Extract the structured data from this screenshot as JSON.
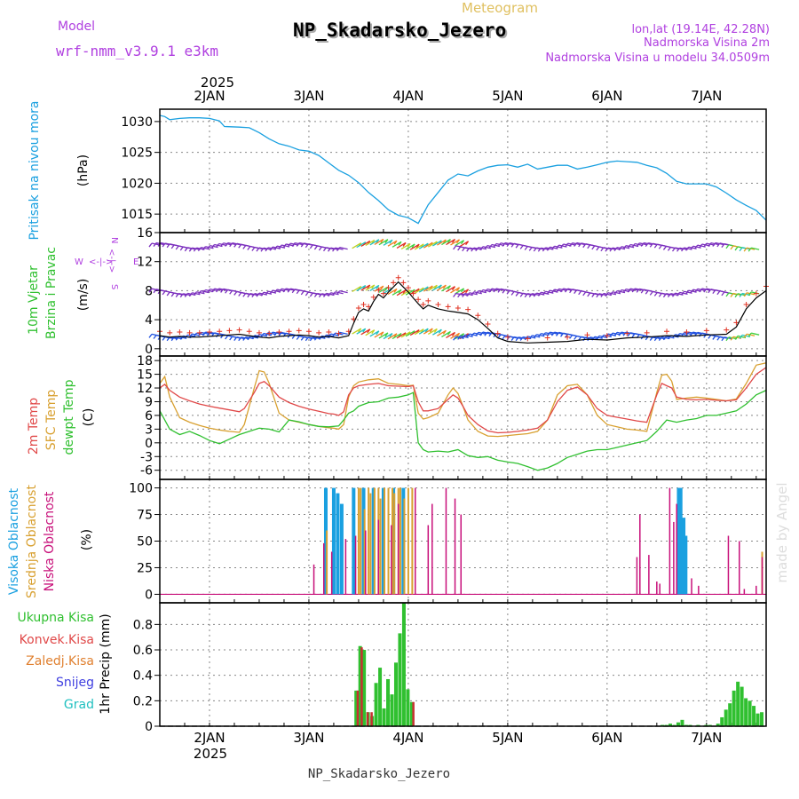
{
  "header": {
    "model_label": "Model",
    "model_name": "wrf-nmm_v3.9.1 e3km",
    "meteogram_label": "Meteogram",
    "station_title": "NP_Skadarsko_Jezero",
    "coords": "lon,lat (19.14E, 42.28N)",
    "elevation": "Nadmorska Visina 2m",
    "model_elevation": "Nadmorska Visina u modelu 34.0509m",
    "year_top": "2025",
    "year_bottom": "2025",
    "footer_station": "NP_Skadarsko_Jezero",
    "watermark": "made by Angel"
  },
  "colors": {
    "pressure": "#1aa0e0",
    "temp2m": "#e04848",
    "sfc_temp": "#d8a030",
    "dewpt": "#30c030",
    "high_cloud": "#1aa0e0",
    "mid_cloud": "#d8a030",
    "low_cloud": "#c8107a",
    "total_precip": "#30c030",
    "conv_precip": "#c83030",
    "snow_label": "#4040e0",
    "hail_label": "#20c0c0",
    "wind_purple": "#7b2fbe",
    "wind_blue": "#2050e0",
    "wind_red": "#e03020",
    "wind_black": "#000000",
    "grid": "#888888",
    "panel_label_blue": "#1aa0e0",
    "panel_label_green": "#30c030",
    "panel_label_purple": "#b040e0",
    "konvek_label": "#e04848",
    "zaledj_label": "#e08030"
  },
  "chart_data": [
    {
      "type": "line",
      "id": "pressure",
      "title": "Pritisak na nivou mora",
      "ylabel": "(hPa)",
      "ylim": [
        1012,
        1032
      ],
      "yticks": [
        1015,
        1020,
        1025,
        1030
      ],
      "x_days": [
        "2JAN",
        "3JAN",
        "4JAN",
        "5JAN",
        "6JAN",
        "7JAN"
      ],
      "xlim": [
        1.5,
        7.6
      ],
      "series": [
        {
          "name": "Pritisak",
          "x": [
            1.5,
            1.55,
            1.6,
            1.7,
            1.8,
            1.9,
            2.0,
            2.1,
            2.15,
            2.3,
            2.4,
            2.5,
            2.6,
            2.7,
            2.8,
            2.9,
            3.0,
            3.1,
            3.2,
            3.3,
            3.4,
            3.5,
            3.6,
            3.7,
            3.8,
            3.9,
            4.0,
            4.1,
            4.2,
            4.3,
            4.4,
            4.5,
            4.6,
            4.7,
            4.8,
            4.9,
            5.0,
            5.1,
            5.2,
            5.3,
            5.4,
            5.5,
            5.6,
            5.7,
            5.8,
            5.9,
            6.0,
            6.1,
            6.2,
            6.3,
            6.4,
            6.5,
            6.6,
            6.7,
            6.8,
            6.9,
            7.0,
            7.1,
            7.2,
            7.3,
            7.4,
            7.5,
            7.6
          ],
          "values": [
            1031.0,
            1030.8,
            1030.3,
            1030.5,
            1030.6,
            1030.6,
            1030.5,
            1030.1,
            1029.2,
            1029.1,
            1029.0,
            1028.2,
            1027.2,
            1026.4,
            1026.0,
            1025.4,
            1025.2,
            1024.5,
            1023.3,
            1022.1,
            1021.3,
            1020.1,
            1018.5,
            1017.2,
            1015.7,
            1014.8,
            1014.4,
            1013.5,
            1016.5,
            1018.5,
            1020.5,
            1021.5,
            1021.2,
            1022.0,
            1022.6,
            1022.9,
            1023.0,
            1022.6,
            1023.1,
            1022.3,
            1022.6,
            1022.9,
            1022.9,
            1022.3,
            1022.6,
            1023.0,
            1023.4,
            1023.6,
            1023.5,
            1023.4,
            1022.9,
            1022.5,
            1021.6,
            1020.3,
            1019.9,
            1019.9,
            1019.9,
            1019.4,
            1018.4,
            1017.3,
            1016.4,
            1015.6,
            1014.0
          ]
        }
      ]
    },
    {
      "type": "line",
      "id": "wind",
      "title": "10m Vjetar Brzina i Pravac",
      "ylabel": "(m/s)",
      "ylim": [
        -1,
        16
      ],
      "yticks": [
        0,
        4,
        8,
        12,
        16
      ],
      "compass": {
        "n": "N",
        "s": "S",
        "e": "E",
        "w": "W"
      },
      "series": [
        {
          "name": "Brzina",
          "x": [
            1.5,
            1.6,
            1.7,
            1.8,
            1.9,
            2.0,
            2.1,
            2.2,
            2.3,
            2.4,
            2.5,
            2.6,
            2.7,
            2.8,
            2.9,
            3.0,
            3.1,
            3.2,
            3.3,
            3.4,
            3.45,
            3.5,
            3.55,
            3.6,
            3.65,
            3.7,
            3.75,
            3.8,
            3.85,
            3.9,
            3.95,
            4.0,
            4.05,
            4.1,
            4.15,
            4.2,
            4.3,
            4.4,
            4.5,
            4.6,
            4.7,
            4.8,
            4.9,
            5.0,
            5.2,
            5.4,
            5.6,
            5.8,
            6.0,
            6.2,
            6.4,
            6.6,
            6.8,
            7.0,
            7.2,
            7.3,
            7.4,
            7.5,
            7.6
          ],
          "values": [
            1.8,
            1.6,
            1.7,
            1.6,
            1.6,
            1.7,
            1.8,
            1.9,
            2.0,
            1.8,
            1.6,
            1.5,
            1.7,
            1.8,
            1.9,
            1.8,
            1.6,
            1.7,
            1.5,
            1.8,
            3.5,
            5.0,
            5.5,
            5.2,
            6.5,
            7.5,
            7.0,
            7.8,
            8.5,
            9.2,
            8.5,
            7.8,
            7.0,
            6.2,
            5.5,
            6.0,
            5.5,
            5.2,
            5.0,
            4.8,
            4.0,
            2.8,
            1.5,
            1.0,
            0.8,
            0.9,
            1.0,
            1.3,
            1.2,
            1.5,
            1.6,
            1.8,
            1.7,
            1.9,
            2.0,
            3.0,
            5.5,
            7.0,
            8.0
          ]
        }
      ]
    },
    {
      "type": "line",
      "id": "temperature",
      "title": "2m Temp / SFC Temp / dewpt Temp",
      "ylabel": "(C)",
      "ylim": [
        -8,
        19
      ],
      "yticks": [
        -6,
        -3,
        0,
        3,
        6,
        9,
        12,
        15,
        18
      ],
      "series": [
        {
          "name": "2m Temp",
          "x": [
            1.5,
            1.55,
            1.6,
            1.7,
            1.8,
            1.9,
            2.0,
            2.1,
            2.2,
            2.3,
            2.35,
            2.45,
            2.5,
            2.55,
            2.6,
            2.7,
            2.8,
            2.9,
            3.0,
            3.1,
            3.2,
            3.25,
            3.3,
            3.35,
            3.4,
            3.45,
            3.5,
            3.6,
            3.7,
            3.8,
            3.9,
            4.0,
            4.05,
            4.1,
            4.15,
            4.2,
            4.3,
            4.4,
            4.45,
            4.5,
            4.55,
            4.6,
            4.7,
            4.8,
            4.9,
            5.0,
            5.1,
            5.2,
            5.3,
            5.4,
            5.5,
            5.6,
            5.7,
            5.8,
            5.9,
            6.0,
            6.1,
            6.2,
            6.3,
            6.4,
            6.5,
            6.55,
            6.6,
            6.65,
            6.7,
            6.8,
            6.9,
            7.0,
            7.1,
            7.2,
            7.3,
            7.4,
            7.5,
            7.6
          ],
          "values": [
            12.0,
            12.8,
            11.5,
            10.0,
            9.2,
            8.5,
            8.0,
            7.6,
            7.2,
            6.8,
            7.5,
            11.0,
            13.0,
            13.4,
            12.5,
            10.0,
            8.8,
            8.0,
            7.4,
            6.9,
            6.4,
            6.3,
            6.0,
            6.8,
            10.5,
            12.0,
            12.5,
            12.8,
            13.0,
            12.5,
            12.4,
            12.3,
            12.5,
            9.0,
            7.0,
            7.0,
            7.5,
            9.5,
            10.5,
            9.8,
            8.0,
            6.0,
            4.0,
            2.6,
            2.2,
            2.3,
            2.5,
            2.8,
            3.2,
            5.0,
            9.0,
            11.5,
            12.2,
            10.5,
            7.5,
            6.0,
            5.6,
            5.2,
            4.8,
            4.5,
            10.5,
            13.0,
            12.5,
            12.0,
            10.0,
            9.5,
            9.4,
            9.5,
            9.3,
            9.2,
            9.4,
            12.0,
            15.0,
            16.5
          ]
        },
        {
          "name": "SFC Temp",
          "x": [
            1.5,
            1.55,
            1.6,
            1.7,
            1.8,
            1.9,
            2.0,
            2.1,
            2.2,
            2.3,
            2.35,
            2.45,
            2.5,
            2.55,
            2.6,
            2.7,
            2.8,
            2.9,
            3.0,
            3.1,
            3.2,
            3.25,
            3.3,
            3.35,
            3.4,
            3.45,
            3.5,
            3.6,
            3.7,
            3.8,
            3.9,
            4.0,
            4.05,
            4.1,
            4.15,
            4.2,
            4.3,
            4.4,
            4.45,
            4.5,
            4.55,
            4.6,
            4.7,
            4.8,
            4.9,
            5.0,
            5.1,
            5.2,
            5.3,
            5.4,
            5.5,
            5.6,
            5.7,
            5.8,
            5.9,
            6.0,
            6.1,
            6.2,
            6.3,
            6.4,
            6.5,
            6.55,
            6.6,
            6.65,
            6.7,
            6.8,
            6.9,
            7.0,
            7.1,
            7.2,
            7.3,
            7.4,
            7.5,
            7.6
          ],
          "values": [
            13.0,
            14.5,
            10.0,
            5.5,
            4.5,
            3.8,
            3.2,
            2.8,
            2.5,
            2.3,
            4.0,
            12.0,
            15.8,
            15.5,
            13.0,
            6.5,
            5.0,
            4.5,
            4.0,
            3.6,
            3.3,
            3.2,
            3.0,
            4.0,
            10.0,
            12.5,
            13.3,
            13.8,
            14.0,
            13.0,
            12.8,
            12.5,
            12.6,
            6.5,
            5.2,
            5.5,
            6.5,
            10.5,
            12.0,
            10.8,
            8.0,
            5.0,
            2.5,
            1.5,
            1.4,
            1.6,
            1.8,
            2.0,
            2.5,
            5.0,
            10.5,
            12.5,
            12.8,
            10.5,
            6.0,
            4.0,
            3.5,
            3.0,
            2.8,
            2.5,
            11.0,
            14.8,
            15.0,
            13.5,
            9.5,
            9.8,
            10.0,
            9.8,
            9.5,
            9.2,
            9.6,
            13.0,
            17.0,
            17.5
          ]
        },
        {
          "name": "dewpt Temp",
          "x": [
            1.5,
            1.55,
            1.6,
            1.7,
            1.8,
            1.9,
            2.0,
            2.1,
            2.2,
            2.3,
            2.4,
            2.5,
            2.6,
            2.7,
            2.8,
            2.9,
            3.0,
            3.1,
            3.2,
            3.3,
            3.35,
            3.4,
            3.45,
            3.5,
            3.6,
            3.7,
            3.8,
            3.9,
            4.0,
            4.05,
            4.1,
            4.15,
            4.2,
            4.3,
            4.4,
            4.5,
            4.6,
            4.7,
            4.8,
            4.9,
            5.0,
            5.1,
            5.2,
            5.3,
            5.4,
            5.5,
            5.6,
            5.7,
            5.8,
            5.9,
            6.0,
            6.1,
            6.2,
            6.3,
            6.4,
            6.5,
            6.6,
            6.7,
            6.8,
            6.9,
            7.0,
            7.1,
            7.2,
            7.3,
            7.4,
            7.5,
            7.6
          ],
          "values": [
            7.0,
            5.0,
            3.0,
            1.8,
            2.5,
            1.6,
            0.5,
            -0.2,
            0.8,
            1.8,
            2.5,
            3.2,
            3.0,
            2.4,
            5.0,
            4.6,
            4.0,
            3.6,
            3.5,
            3.7,
            5.0,
            6.5,
            7.0,
            8.0,
            8.8,
            9.0,
            9.8,
            10.0,
            10.5,
            11.0,
            0.0,
            -1.5,
            -2.0,
            -1.8,
            -2.0,
            -1.5,
            -2.8,
            -3.2,
            -3.0,
            -3.8,
            -4.2,
            -4.5,
            -5.2,
            -6.0,
            -5.5,
            -4.5,
            -3.2,
            -2.5,
            -1.8,
            -1.5,
            -1.5,
            -1.0,
            -0.5,
            0.0,
            0.5,
            2.5,
            5.0,
            4.5,
            5.0,
            5.3,
            6.0,
            6.0,
            6.5,
            7.0,
            8.5,
            10.5,
            11.5
          ]
        }
      ]
    },
    {
      "type": "bar",
      "id": "clouds",
      "title": "Visoka / Srednja / Niska Oblacnost",
      "ylabel": "(%)",
      "ylim": [
        -8,
        108
      ],
      "yticks": [
        0,
        25,
        50,
        75,
        100
      ],
      "series": [
        {
          "name": "Visoka Oblacnost",
          "x": [
            3.17,
            3.25,
            3.29,
            3.33,
            3.45,
            3.55,
            3.65,
            3.75,
            3.85,
            3.95,
            6.72,
            6.74,
            6.77,
            6.79
          ],
          "values": [
            100,
            100,
            95,
            85,
            100,
            100,
            100,
            100,
            100,
            100,
            100,
            100,
            72,
            55
          ]
        },
        {
          "name": "Srednja Oblacnost",
          "x": [
            3.18,
            3.5,
            3.52,
            3.56,
            3.6,
            3.62,
            3.66,
            3.7,
            3.72,
            3.76,
            3.8,
            3.84,
            3.86,
            3.9,
            3.92,
            3.96,
            4.0,
            4.04,
            7.56
          ],
          "values": [
            60,
            100,
            100,
            80,
            100,
            95,
            100,
            100,
            90,
            100,
            100,
            100,
            95,
            100,
            100,
            90,
            100,
            100,
            40
          ]
        },
        {
          "name": "Niska Oblacnost",
          "x": [
            3.05,
            3.15,
            3.23,
            3.37,
            3.47,
            3.57,
            3.7,
            3.83,
            3.9,
            4.07,
            4.2,
            4.24,
            4.38,
            4.47,
            4.53,
            6.3,
            6.33,
            6.42,
            6.5,
            6.53,
            6.63,
            6.67,
            6.7,
            6.85,
            6.92,
            7.22,
            7.33,
            7.38,
            7.5,
            7.56
          ],
          "values": [
            28,
            48,
            40,
            52,
            55,
            60,
            70,
            65,
            85,
            100,
            65,
            85,
            100,
            90,
            75,
            35,
            75,
            37,
            12,
            10,
            100,
            68,
            85,
            15,
            8,
            55,
            50,
            5,
            8,
            35
          ]
        }
      ]
    },
    {
      "type": "bar",
      "id": "precip",
      "title": "1hr Precip (mm)",
      "ylabel": "1hr Precip (mm)",
      "ylim": [
        0,
        0.97
      ],
      "yticks": [
        0,
        0.2,
        0.4,
        0.6,
        0.8
      ],
      "legend": [
        "Ukupna Kisa",
        "Konvek.Kisa",
        "Zaledj.Kisa",
        "Snijeg",
        "Grad"
      ],
      "series": [
        {
          "name": "Ukupna Kisa",
          "x": [
            3.48,
            3.52,
            3.56,
            3.6,
            3.64,
            3.68,
            3.72,
            3.76,
            3.8,
            3.84,
            3.88,
            3.92,
            3.96,
            4.0,
            4.04,
            6.56,
            6.6,
            6.64,
            6.68,
            6.72,
            6.76,
            6.8,
            6.84,
            6.88,
            6.92,
            6.96,
            7.0,
            7.04,
            7.08,
            7.12,
            7.16,
            7.2,
            7.24,
            7.28,
            7.32,
            7.36,
            7.4,
            7.44,
            7.48,
            7.52,
            7.56
          ],
          "values": [
            0.28,
            0.63,
            0.6,
            0.11,
            0.08,
            0.34,
            0.46,
            0.14,
            0.37,
            0.25,
            0.5,
            0.73,
            0.97,
            0.29,
            0.19,
            0.01,
            0.01,
            0.02,
            0.01,
            0.03,
            0.05,
            0.01,
            0.01,
            0.0,
            0.01,
            0.0,
            0.01,
            0.01,
            0.0,
            0.02,
            0.07,
            0.13,
            0.18,
            0.28,
            0.35,
            0.31,
            0.22,
            0.2,
            0.16,
            0.1,
            0.11
          ]
        },
        {
          "name": "Konvek.Kisa",
          "x": [
            3.48,
            3.52,
            3.58,
            3.62,
            4.04
          ],
          "values": [
            0.28,
            0.62,
            0.11,
            0.11,
            0.19
          ]
        }
      ]
    }
  ]
}
